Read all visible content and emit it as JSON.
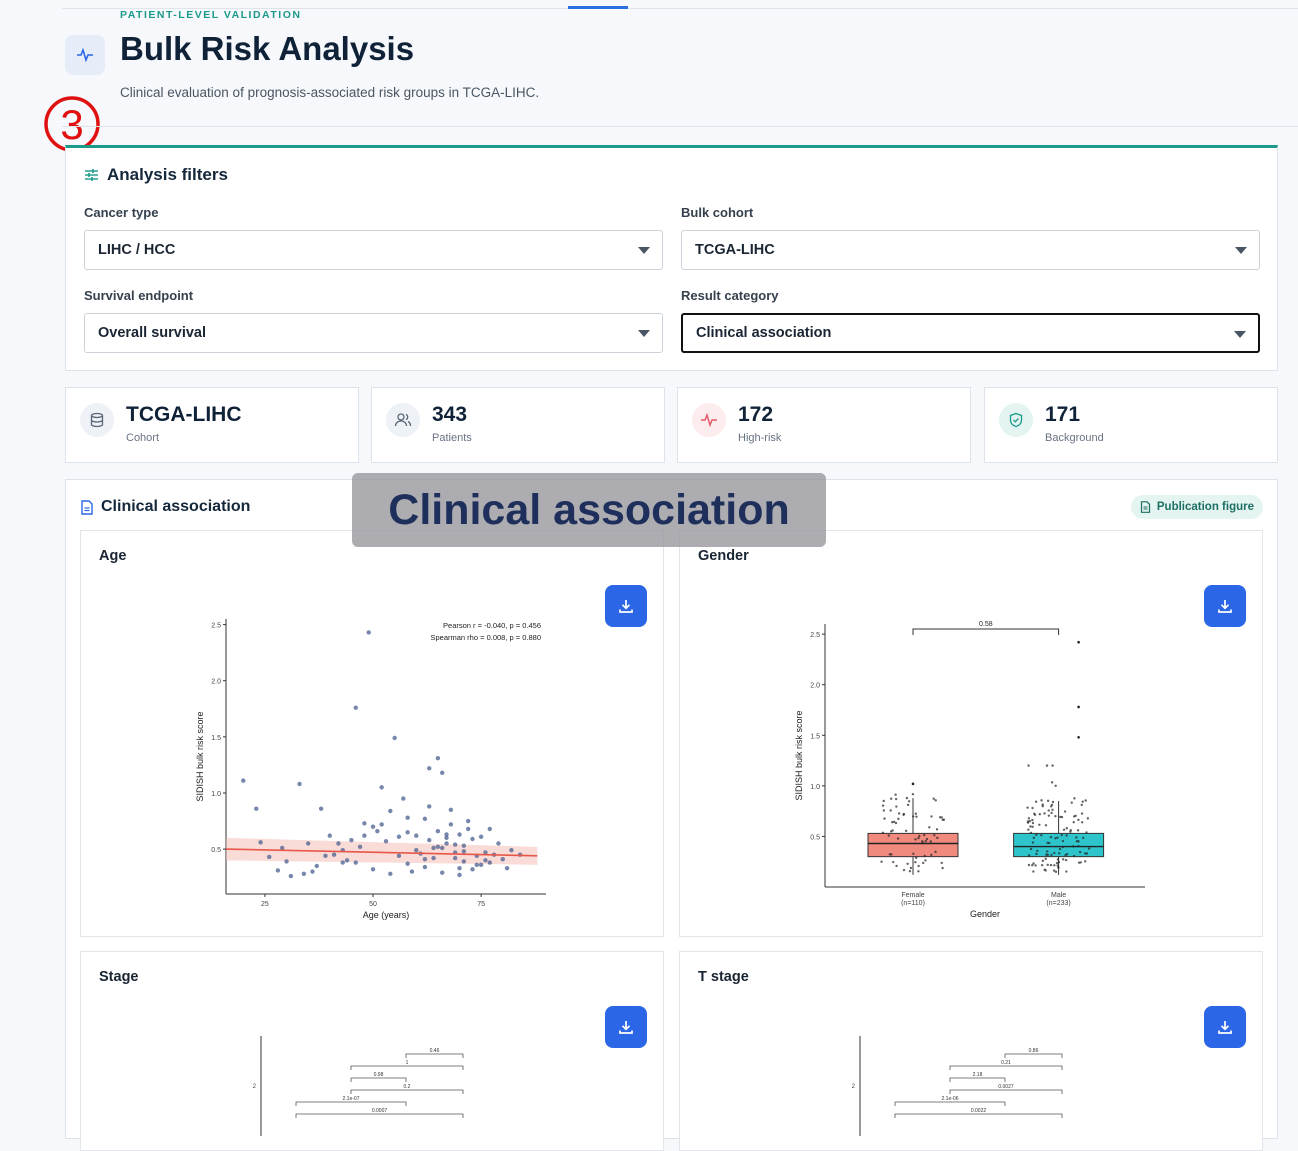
{
  "header": {
    "eyebrow": "PATIENT-LEVEL VALIDATION",
    "title": "Bulk Risk Analysis",
    "subtitle": "Clinical evaluation of prognosis-associated risk groups in TCGA-LIHC.",
    "step_marker": "③"
  },
  "filters": {
    "title": "Analysis filters",
    "cancer_type": {
      "label": "Cancer type",
      "value": "LIHC / HCC"
    },
    "bulk_cohort": {
      "label": "Bulk cohort",
      "value": "TCGA-LIHC"
    },
    "survival_endpoint": {
      "label": "Survival endpoint",
      "value": "Overall survival"
    },
    "result_category": {
      "label": "Result category",
      "value": "Clinical association"
    }
  },
  "stats": [
    {
      "value": "TCGA-LIHC",
      "label": "Cohort",
      "icon": "database-icon"
    },
    {
      "value": "343",
      "label": "Patients",
      "icon": "users-icon"
    },
    {
      "value": "172",
      "label": "High-risk",
      "icon": "pulse-icon"
    },
    {
      "value": "171",
      "label": "Background",
      "icon": "shield-icon"
    }
  ],
  "panel": {
    "title": "Clinical association",
    "badge": "Publication figure",
    "overlay": "Clinical association"
  },
  "cards": [
    {
      "title": "Age"
    },
    {
      "title": "Gender"
    },
    {
      "title": "Stage"
    },
    {
      "title": "T stage"
    }
  ],
  "chart_data": [
    {
      "type": "scatter",
      "xlabel": "Age (years)",
      "ylabel": "SIDISH bulk risk score",
      "xlim": [
        16,
        90
      ],
      "ylim": [
        0.1,
        2.55
      ],
      "xticks": [
        25,
        50,
        75
      ],
      "yticks": [
        0.5,
        1.0,
        1.5,
        2.0,
        2.5
      ],
      "annotation": [
        "Pearson r = -0.040, p = 0.456",
        "Spearman rho = 0.008, p = 0.880"
      ],
      "fit_line": {
        "x": [
          16,
          88
        ],
        "y": [
          0.5,
          0.44
        ]
      },
      "x": [
        23,
        20,
        29,
        33,
        35,
        38,
        41,
        46,
        49,
        48,
        52,
        52,
        55,
        57,
        56,
        58,
        60,
        62,
        63,
        64,
        65,
        66,
        67,
        68,
        69,
        70,
        71,
        72,
        73,
        75,
        76,
        77,
        78,
        70,
        66,
        62,
        58,
        54,
        50,
        46,
        44,
        42,
        40,
        36,
        30,
        26,
        24,
        60,
        61,
        63,
        65,
        67,
        69,
        71,
        74,
        79,
        80,
        82,
        72,
        68,
        56,
        53,
        51,
        48,
        45,
        43,
        39,
        37,
        34,
        31,
        28,
        59,
        62,
        64,
        66,
        70,
        73,
        75,
        77,
        81,
        84,
        58,
        54,
        50,
        47,
        43,
        63,
        65,
        67,
        69,
        71,
        74,
        76
      ],
      "y": [
        0.86,
        1.11,
        0.51,
        1.08,
        0.55,
        0.86,
        0.45,
        1.76,
        2.43,
        0.62,
        1.05,
        0.72,
        1.49,
        0.95,
        0.44,
        0.65,
        0.62,
        0.77,
        1.22,
        0.51,
        1.31,
        1.18,
        0.55,
        0.72,
        0.42,
        0.63,
        0.53,
        0.75,
        0.59,
        0.61,
        0.47,
        0.68,
        0.45,
        0.33,
        0.51,
        0.41,
        0.37,
        0.28,
        0.32,
        0.38,
        0.4,
        0.55,
        0.62,
        0.3,
        0.39,
        0.43,
        0.56,
        0.49,
        0.46,
        0.58,
        0.52,
        0.63,
        0.47,
        0.39,
        0.36,
        0.55,
        0.41,
        0.49,
        0.68,
        0.85,
        0.61,
        0.57,
        0.66,
        0.73,
        0.58,
        0.49,
        0.44,
        0.35,
        0.28,
        0.26,
        0.31,
        0.3,
        0.34,
        0.42,
        0.29,
        0.27,
        0.32,
        0.36,
        0.38,
        0.33,
        0.45,
        0.78,
        0.84,
        0.7,
        0.52,
        0.38,
        0.88,
        0.66,
        0.6,
        0.54,
        0.48,
        0.44,
        0.4
      ]
    },
    {
      "type": "box",
      "xlabel": "Gender",
      "ylabel": "SIDISH bulk risk score",
      "categories": [
        "Female\n(n=110)",
        "Male\n(n=233)"
      ],
      "ylim": [
        0.0,
        2.6
      ],
      "yticks": [
        0.5,
        1.0,
        1.5,
        2.0,
        2.5
      ],
      "p_value_label": "0.58",
      "boxes": [
        {
          "q1": 0.3,
          "median": 0.43,
          "q3": 0.53,
          "whisker_low": 0.12,
          "whisker_high": 0.88,
          "color": "#f08a7e"
        },
        {
          "q1": 0.3,
          "median": 0.4,
          "q3": 0.53,
          "whisker_low": 0.12,
          "whisker_high": 0.85,
          "color": "#2ec4cc"
        }
      ]
    },
    {
      "type": "bracket-comparison",
      "labels": [
        "0.46",
        "1",
        "0.98",
        "0.2",
        "2.1e-07",
        "0.0007"
      ]
    },
    {
      "type": "bracket-comparison",
      "labels": [
        "0.86",
        "0.21",
        "2.18",
        "0.0027",
        "2.1e-06",
        "0.0022"
      ]
    }
  ],
  "colors": {
    "accent": "#1b9a8a",
    "primary": "#2b66e6",
    "high_risk": "#e05a6a"
  }
}
